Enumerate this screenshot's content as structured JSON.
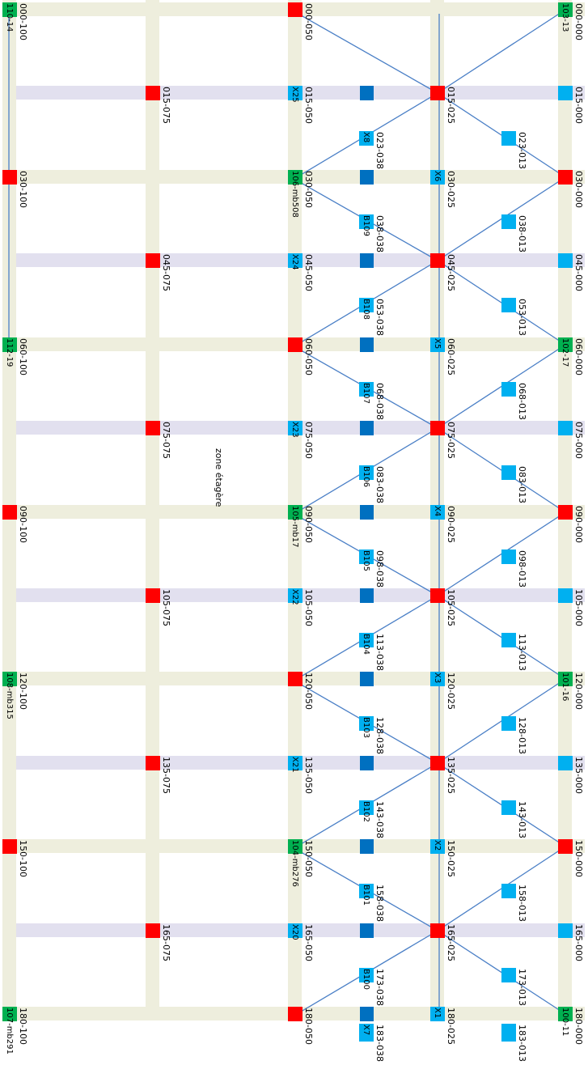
{
  "colors": {
    "band_olive": "#eeeedd",
    "band_lavender": "#e2e0ef",
    "red": "#ff0000",
    "green": "#00b050",
    "light_blue": "#00b0f0",
    "dark_blue": "#0070c0",
    "link_line": "#4a7fc6"
  },
  "zone_label": "zone étagère",
  "refs": [
    {
      "key": "r000100",
      "text": "000-100"
    },
    {
      "key": "r030100",
      "text": "030-100"
    },
    {
      "key": "r060100",
      "text": "060-100"
    },
    {
      "key": "r090100",
      "text": "090-100"
    },
    {
      "key": "r120100",
      "text": "120-100"
    },
    {
      "key": "r150100",
      "text": "150-100"
    },
    {
      "key": "r180100",
      "text": "180-100"
    },
    {
      "key": "r015075",
      "text": "015-075"
    },
    {
      "key": "r045075",
      "text": "045-075"
    },
    {
      "key": "r075075",
      "text": "075-075"
    },
    {
      "key": "r105075",
      "text": "105-075"
    },
    {
      "key": "r135075",
      "text": "135-075"
    },
    {
      "key": "r165075",
      "text": "165-075"
    },
    {
      "key": "r000050",
      "text": "000-050"
    },
    {
      "key": "r015050",
      "text": "015-050"
    },
    {
      "key": "r030050",
      "text": "030-050"
    },
    {
      "key": "r045050",
      "text": "045-050"
    },
    {
      "key": "r060050",
      "text": "060-050"
    },
    {
      "key": "r075050",
      "text": "075-050"
    },
    {
      "key": "r090050",
      "text": "090-050"
    },
    {
      "key": "r105050",
      "text": "105-050"
    },
    {
      "key": "r120050",
      "text": "120-050"
    },
    {
      "key": "r135050",
      "text": "135-050"
    },
    {
      "key": "r150050",
      "text": "150-050"
    },
    {
      "key": "r165050",
      "text": "165-050"
    },
    {
      "key": "r180050",
      "text": "180-050"
    },
    {
      "key": "r023038",
      "text": "023-038"
    },
    {
      "key": "r038038",
      "text": "038-038"
    },
    {
      "key": "r053038",
      "text": "053-038"
    },
    {
      "key": "r068038",
      "text": "068-038"
    },
    {
      "key": "r083038",
      "text": "083-038"
    },
    {
      "key": "r098038",
      "text": "098-038"
    },
    {
      "key": "r113038",
      "text": "113-038"
    },
    {
      "key": "r128038",
      "text": "128-038"
    },
    {
      "key": "r143038",
      "text": "143-038"
    },
    {
      "key": "r158038",
      "text": "158-038"
    },
    {
      "key": "r173038",
      "text": "173-038"
    },
    {
      "key": "r183038",
      "text": "183-038"
    },
    {
      "key": "r015025",
      "text": "015-025"
    },
    {
      "key": "r030025",
      "text": "030-025"
    },
    {
      "key": "r045025",
      "text": "045-025"
    },
    {
      "key": "r060025",
      "text": "060-025"
    },
    {
      "key": "r075025",
      "text": "075-025"
    },
    {
      "key": "r090025",
      "text": "090-025"
    },
    {
      "key": "r105025",
      "text": "105-025"
    },
    {
      "key": "r120025",
      "text": "120-025"
    },
    {
      "key": "r135025",
      "text": "135-025"
    },
    {
      "key": "r150025",
      "text": "150-025"
    },
    {
      "key": "r165025",
      "text": "165-025"
    },
    {
      "key": "r180025",
      "text": "180-025"
    },
    {
      "key": "r023013",
      "text": "023-013"
    },
    {
      "key": "r038013",
      "text": "038-013"
    },
    {
      "key": "r053013",
      "text": "053-013"
    },
    {
      "key": "r068013",
      "text": "068-013"
    },
    {
      "key": "r083013",
      "text": "083-013"
    },
    {
      "key": "r098013",
      "text": "098-013"
    },
    {
      "key": "r113013",
      "text": "113-013"
    },
    {
      "key": "r128013",
      "text": "128-013"
    },
    {
      "key": "r143013",
      "text": "143-013"
    },
    {
      "key": "r158013",
      "text": "158-013"
    },
    {
      "key": "r173013",
      "text": "173-013"
    },
    {
      "key": "r183013",
      "text": "183-013"
    },
    {
      "key": "r000000",
      "text": "000-000"
    },
    {
      "key": "r015000",
      "text": "015-000"
    },
    {
      "key": "r030000",
      "text": "030-000"
    },
    {
      "key": "r045000",
      "text": "045-000"
    },
    {
      "key": "r060000",
      "text": "060-000"
    },
    {
      "key": "r075000",
      "text": "075-000"
    },
    {
      "key": "r090000",
      "text": "090-000"
    },
    {
      "key": "r105000",
      "text": "105-000"
    },
    {
      "key": "r120000",
      "text": "120-000"
    },
    {
      "key": "r135000",
      "text": "135-000"
    },
    {
      "key": "r150000",
      "text": "150-000"
    },
    {
      "key": "r165000",
      "text": "165-000"
    },
    {
      "key": "r180000",
      "text": "180-000"
    }
  ],
  "nodes": [
    {
      "key": "n000100",
      "color": "green",
      "label": "110-14"
    },
    {
      "key": "n030100",
      "color": "red",
      "label": ""
    },
    {
      "key": "n060100",
      "color": "green",
      "label": "112-19"
    },
    {
      "key": "n090100",
      "color": "red",
      "label": ""
    },
    {
      "key": "n120100",
      "color": "green",
      "label": "108-mb315"
    },
    {
      "key": "n150100",
      "color": "red",
      "label": ""
    },
    {
      "key": "n180100",
      "color": "green",
      "label": "107-mb291"
    },
    {
      "key": "n015075",
      "color": "red",
      "label": ""
    },
    {
      "key": "n045075",
      "color": "red",
      "label": ""
    },
    {
      "key": "n075075",
      "color": "red",
      "label": ""
    },
    {
      "key": "n105075",
      "color": "red",
      "label": ""
    },
    {
      "key": "n135075",
      "color": "red",
      "label": ""
    },
    {
      "key": "n165075",
      "color": "red",
      "label": ""
    },
    {
      "key": "n000050",
      "color": "red",
      "label": ""
    },
    {
      "key": "n015050",
      "color": "cyan",
      "label": "X25"
    },
    {
      "key": "n030050",
      "color": "green",
      "label": "106-mb508"
    },
    {
      "key": "n045050",
      "color": "cyan",
      "label": "X24"
    },
    {
      "key": "n060050",
      "color": "red",
      "label": ""
    },
    {
      "key": "n075050",
      "color": "cyan",
      "label": "X23"
    },
    {
      "key": "n090050",
      "color": "green",
      "label": "105-mb17"
    },
    {
      "key": "n105050",
      "color": "cyan",
      "label": "X22"
    },
    {
      "key": "n120050",
      "color": "red",
      "label": ""
    },
    {
      "key": "n135050",
      "color": "cyan",
      "label": "X21"
    },
    {
      "key": "n150050",
      "color": "green",
      "label": "104-mb276"
    },
    {
      "key": "n165050",
      "color": "cyan",
      "label": "X20"
    },
    {
      "key": "n180050",
      "color": "red",
      "label": ""
    },
    {
      "key": "n015038",
      "color": "blue",
      "label": ""
    },
    {
      "key": "n030038",
      "color": "blue",
      "label": ""
    },
    {
      "key": "n045038",
      "color": "blue",
      "label": ""
    },
    {
      "key": "n060038",
      "color": "blue",
      "label": ""
    },
    {
      "key": "n075038",
      "color": "blue",
      "label": ""
    },
    {
      "key": "n090038",
      "color": "blue",
      "label": ""
    },
    {
      "key": "n105038",
      "color": "blue",
      "label": ""
    },
    {
      "key": "n120038",
      "color": "blue",
      "label": ""
    },
    {
      "key": "n135038",
      "color": "blue",
      "label": ""
    },
    {
      "key": "n150038",
      "color": "blue",
      "label": ""
    },
    {
      "key": "n165038",
      "color": "blue",
      "label": ""
    },
    {
      "key": "n180038",
      "color": "blue",
      "label": ""
    },
    {
      "key": "n023038",
      "color": "cyan",
      "label": "X8"
    },
    {
      "key": "n038038",
      "color": "cyan",
      "label": "B109"
    },
    {
      "key": "n053038",
      "color": "cyan",
      "label": "B108"
    },
    {
      "key": "n068038",
      "color": "cyan",
      "label": "B107"
    },
    {
      "key": "n083038",
      "color": "cyan",
      "label": "B106"
    },
    {
      "key": "n098038",
      "color": "cyan",
      "label": "B105"
    },
    {
      "key": "n113038",
      "color": "cyan",
      "label": "B104"
    },
    {
      "key": "n128038",
      "color": "cyan",
      "label": "B103"
    },
    {
      "key": "n143038",
      "color": "cyan",
      "label": "B102"
    },
    {
      "key": "n158038",
      "color": "cyan",
      "label": "B101"
    },
    {
      "key": "n173038",
      "color": "cyan",
      "label": "B100"
    },
    {
      "key": "n183038",
      "color": "cyan",
      "label": "X7"
    },
    {
      "key": "n015025",
      "color": "red",
      "label": ""
    },
    {
      "key": "n030025",
      "color": "cyan",
      "label": "X6"
    },
    {
      "key": "n045025",
      "color": "red",
      "label": ""
    },
    {
      "key": "n060025",
      "color": "cyan",
      "label": "X5"
    },
    {
      "key": "n075025",
      "color": "red",
      "label": ""
    },
    {
      "key": "n090025",
      "color": "cyan",
      "label": "X4"
    },
    {
      "key": "n105025",
      "color": "red",
      "label": ""
    },
    {
      "key": "n120025",
      "color": "cyan",
      "label": "X3"
    },
    {
      "key": "n135025",
      "color": "red",
      "label": ""
    },
    {
      "key": "n150025",
      "color": "cyan",
      "label": "X2"
    },
    {
      "key": "n165025",
      "color": "red",
      "label": ""
    },
    {
      "key": "n180025",
      "color": "cyan",
      "label": "X1"
    },
    {
      "key": "n023013",
      "color": "cyan",
      "label": ""
    },
    {
      "key": "n038013",
      "color": "cyan",
      "label": ""
    },
    {
      "key": "n053013",
      "color": "cyan",
      "label": ""
    },
    {
      "key": "n068013",
      "color": "cyan",
      "label": ""
    },
    {
      "key": "n083013",
      "color": "cyan",
      "label": ""
    },
    {
      "key": "n098013",
      "color": "cyan",
      "label": ""
    },
    {
      "key": "n113013",
      "color": "cyan",
      "label": ""
    },
    {
      "key": "n128013",
      "color": "cyan",
      "label": ""
    },
    {
      "key": "n143013",
      "color": "cyan",
      "label": ""
    },
    {
      "key": "n158013",
      "color": "cyan",
      "label": ""
    },
    {
      "key": "n173013",
      "color": "cyan",
      "label": ""
    },
    {
      "key": "n183013",
      "color": "cyan",
      "label": ""
    },
    {
      "key": "n000000",
      "color": "green",
      "label": "103-13"
    },
    {
      "key": "n015000",
      "color": "cyan",
      "label": ""
    },
    {
      "key": "n030000",
      "color": "red",
      "label": ""
    },
    {
      "key": "n045000",
      "color": "cyan",
      "label": ""
    },
    {
      "key": "n060000",
      "color": "green",
      "label": "102-17"
    },
    {
      "key": "n075000",
      "color": "cyan",
      "label": ""
    },
    {
      "key": "n090000",
      "color": "red",
      "label": ""
    },
    {
      "key": "n105000",
      "color": "cyan",
      "label": ""
    },
    {
      "key": "n120000",
      "color": "green",
      "label": "101-16"
    },
    {
      "key": "n135000",
      "color": "cyan",
      "label": ""
    },
    {
      "key": "n150000",
      "color": "red",
      "label": ""
    },
    {
      "key": "n165000",
      "color": "cyan",
      "label": ""
    },
    {
      "key": "n180000",
      "color": "green",
      "label": "100-11"
    }
  ]
}
